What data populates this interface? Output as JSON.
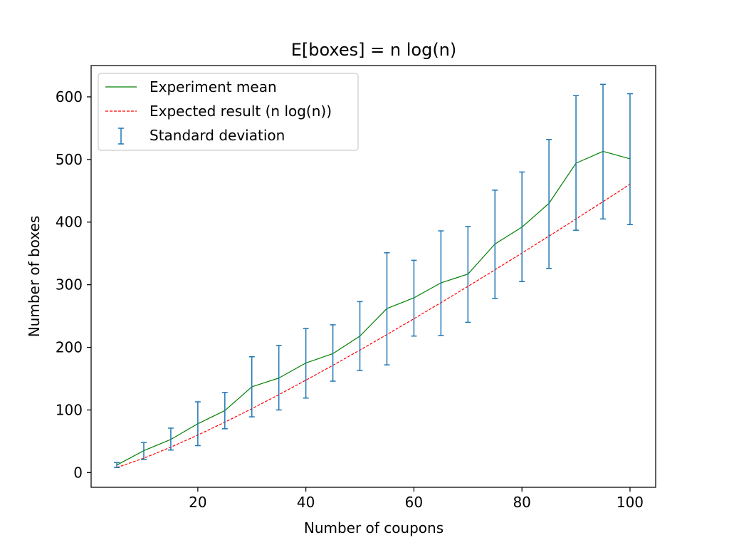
{
  "chart_data": {
    "type": "line",
    "title": "E[boxes] = n log(n)",
    "xlabel": "Number of coupons",
    "ylabel": "Number of boxes",
    "xlim": [
      0.25,
      104.75
    ],
    "ylim": [
      -23.5,
      650
    ],
    "x_ticks": [
      20,
      40,
      60,
      80,
      100
    ],
    "y_ticks": [
      0,
      100,
      200,
      300,
      400,
      500,
      600
    ],
    "grid": false,
    "legend_position": "top-left",
    "x": [
      5,
      10,
      15,
      20,
      25,
      30,
      35,
      40,
      45,
      50,
      55,
      60,
      65,
      70,
      75,
      80,
      85,
      90,
      95,
      100
    ],
    "series": [
      {
        "name": "Experiment mean",
        "kind": "line",
        "style": "solid",
        "color": "#008000",
        "values": [
          12,
          35,
          53,
          78,
          99,
          137,
          151,
          175,
          190,
          218,
          262,
          279,
          303,
          317,
          365,
          392,
          430,
          494,
          513,
          501
        ]
      },
      {
        "name": "Expected result (n log(n))",
        "kind": "line",
        "style": "dashed",
        "color": "#ff0000",
        "values": [
          8.05,
          23.03,
          40.62,
          59.91,
          80.47,
          102.04,
          124.44,
          147.56,
          171.3,
          195.6,
          220.4,
          245.66,
          271.33,
          297.39,
          323.81,
          350.56,
          377.62,
          404.98,
          432.62,
          460.52
        ]
      },
      {
        "name": "Standard deviation",
        "kind": "errorbar",
        "color": "#1f77b4",
        "lower": [
          8,
          21,
          36,
          43,
          70,
          89,
          100,
          119,
          146,
          163,
          172,
          218,
          219,
          240,
          278,
          305,
          326,
          387,
          405,
          396
        ],
        "upper": [
          16,
          48,
          71,
          113,
          128,
          185,
          203,
          230,
          236,
          273,
          351,
          339,
          386,
          393,
          451,
          480,
          532,
          602,
          620,
          605
        ]
      }
    ]
  }
}
